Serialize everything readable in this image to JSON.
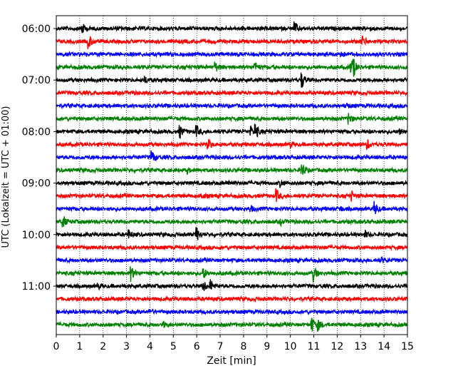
{
  "chart_data": {
    "type": "line",
    "xlabel": "Zeit  [min]",
    "ylabel": "UTC (Lokalzeit = UTC + 01:00)",
    "xlim": [
      0,
      15
    ],
    "x_ticks": [
      "0",
      "1",
      "2",
      "3",
      "4",
      "5",
      "6",
      "7",
      "8",
      "9",
      "10",
      "11",
      "12",
      "13",
      "14",
      "15"
    ],
    "y_tick_labels": [
      {
        "row": 0,
        "label": "06:00"
      },
      {
        "row": 4,
        "label": "07:00"
      },
      {
        "row": 8,
        "label": "08:00"
      },
      {
        "row": 12,
        "label": "09:00"
      },
      {
        "row": 16,
        "label": "10:00"
      },
      {
        "row": 20,
        "label": "11:00"
      }
    ],
    "grid": "vertical dotted",
    "row_interval_minutes": 15,
    "color_cycle": [
      "#000000",
      "#ff0000",
      "#0000ff",
      "#008000"
    ],
    "traces": [
      {
        "start": "06:00",
        "color": "#000000",
        "events": [
          [
            1.1,
            1.0
          ],
          [
            10.2,
            1.1
          ]
        ]
      },
      {
        "start": "06:15",
        "color": "#ff0000",
        "events": [
          [
            1.4,
            1.2
          ],
          [
            13.1,
            0.8
          ]
        ]
      },
      {
        "start": "06:30",
        "color": "#0000ff",
        "events": [
          [
            12.1,
            0.9
          ]
        ]
      },
      {
        "start": "06:45",
        "color": "#008000",
        "events": [
          [
            6.8,
            0.8
          ],
          [
            8.5,
            0.8
          ],
          [
            12.6,
            1.3
          ],
          [
            12.7,
            1.1
          ]
        ]
      },
      {
        "start": "07:00",
        "color": "#000000",
        "events": [
          [
            3.8,
            0.5
          ],
          [
            10.5,
            1.3
          ]
        ]
      },
      {
        "start": "07:15",
        "color": "#ff0000",
        "events": []
      },
      {
        "start": "07:30",
        "color": "#0000ff",
        "events": [
          [
            12.4,
            0.4
          ]
        ]
      },
      {
        "start": "07:45",
        "color": "#008000",
        "events": [
          [
            12.5,
            1.0
          ]
        ]
      },
      {
        "start": "08:00",
        "color": "#000000",
        "events": [
          [
            5.3,
            1.0
          ],
          [
            6.0,
            0.9
          ],
          [
            8.3,
            0.8
          ],
          [
            8.5,
            1.4
          ],
          [
            14.7,
            0.5
          ]
        ]
      },
      {
        "start": "08:15",
        "color": "#ff0000",
        "events": [
          [
            6.5,
            0.8
          ],
          [
            10.0,
            0.5
          ],
          [
            13.3,
            0.8
          ]
        ]
      },
      {
        "start": "08:30",
        "color": "#0000ff",
        "events": [
          [
            4.1,
            1.0
          ]
        ]
      },
      {
        "start": "08:45",
        "color": "#008000",
        "events": [
          [
            10.5,
            1.3
          ],
          [
            5.6,
            0.4
          ]
        ]
      },
      {
        "start": "09:00",
        "color": "#000000",
        "events": [
          [
            7.4,
            0.4
          ],
          [
            9.6,
            0.5
          ]
        ]
      },
      {
        "start": "09:15",
        "color": "#ff0000",
        "events": [
          [
            9.4,
            1.1
          ],
          [
            12.6,
            0.9
          ],
          [
            6.2,
            0.4
          ]
        ]
      },
      {
        "start": "09:30",
        "color": "#0000ff",
        "events": [
          [
            13.6,
            1.2
          ],
          [
            8.3,
            0.5
          ],
          [
            12.1,
            0.5
          ]
        ]
      },
      {
        "start": "09:45",
        "color": "#008000",
        "events": [
          [
            0.3,
            1.0
          ],
          [
            9.6,
            0.4
          ]
        ]
      },
      {
        "start": "10:00",
        "color": "#000000",
        "events": [
          [
            3.1,
            0.7
          ],
          [
            6.0,
            1.2
          ],
          [
            13.2,
            0.5
          ]
        ]
      },
      {
        "start": "10:15",
        "color": "#ff0000",
        "events": []
      },
      {
        "start": "10:30",
        "color": "#0000ff",
        "events": [
          [
            13.9,
            0.4
          ]
        ]
      },
      {
        "start": "10:45",
        "color": "#008000",
        "events": [
          [
            3.2,
            1.2
          ],
          [
            6.3,
            0.8
          ],
          [
            11.0,
            1.3
          ]
        ]
      },
      {
        "start": "11:00",
        "color": "#000000",
        "events": [
          [
            6.3,
            0.9
          ],
          [
            6.6,
            1.0
          ],
          [
            1.8,
            0.4
          ]
        ]
      },
      {
        "start": "11:15",
        "color": "#ff0000",
        "events": []
      },
      {
        "start": "11:30",
        "color": "#0000ff",
        "events": [
          [
            4.0,
            0.4
          ]
        ]
      },
      {
        "start": "11:45",
        "color": "#008000",
        "events": [
          [
            10.9,
            1.5
          ],
          [
            11.2,
            0.9
          ],
          [
            4.6,
            0.4
          ]
        ]
      }
    ]
  }
}
